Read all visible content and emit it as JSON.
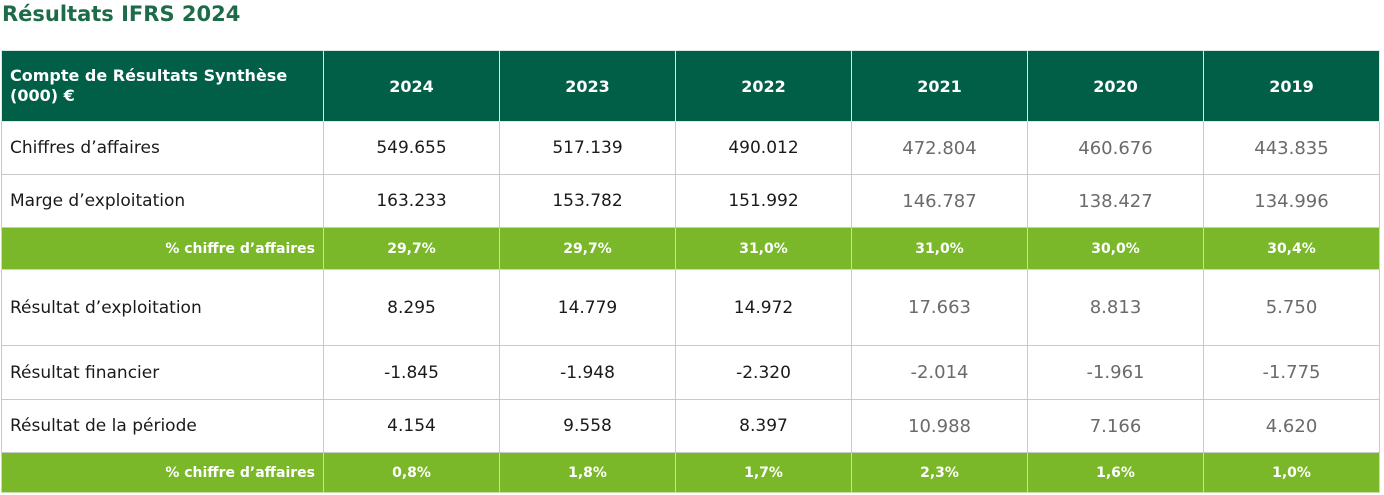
{
  "title": "Résultats IFRS 2024",
  "table": {
    "header": {
      "label": "Compte de Résultats Synthèse (000) €",
      "years": [
        "2024",
        "2023",
        "2022",
        "2021",
        "2020",
        "2019"
      ]
    },
    "rows": [
      {
        "type": "data",
        "label": "Chiffres d’affaires",
        "values": [
          "549.655",
          "517.139",
          "490.012",
          "472.804",
          "460.676",
          "443.835"
        ]
      },
      {
        "type": "data",
        "label": "Marge d’exploitation",
        "values": [
          "163.233",
          "153.782",
          "151.992",
          "146.787",
          "138.427",
          "134.996"
        ]
      },
      {
        "type": "percent",
        "label": "% chiffre d’affaires",
        "values": [
          "29,7%",
          "29,7%",
          "31,0%",
          "31,0%",
          "30,0%",
          "30,4%"
        ]
      },
      {
        "type": "data",
        "label": "Résultat d’exploitation",
        "values": [
          "8.295",
          "14.779",
          "14.972",
          "17.663",
          "8.813",
          "5.750"
        ]
      },
      {
        "type": "data",
        "label": "Résultat financier",
        "values": [
          "-1.845",
          "-1.948",
          "-2.320",
          "-2.014",
          "-1.961",
          "-1.775"
        ]
      },
      {
        "type": "data",
        "label": "Résultat de la période",
        "values": [
          "4.154",
          "9.558",
          "8.397",
          "10.988",
          "7.166",
          "4.620"
        ]
      },
      {
        "type": "percent",
        "label": "% chiffre d’affaires",
        "values": [
          "0,8%",
          "1,8%",
          "1,7%",
          "2,3%",
          "1,6%",
          "1,0%"
        ]
      }
    ]
  }
}
